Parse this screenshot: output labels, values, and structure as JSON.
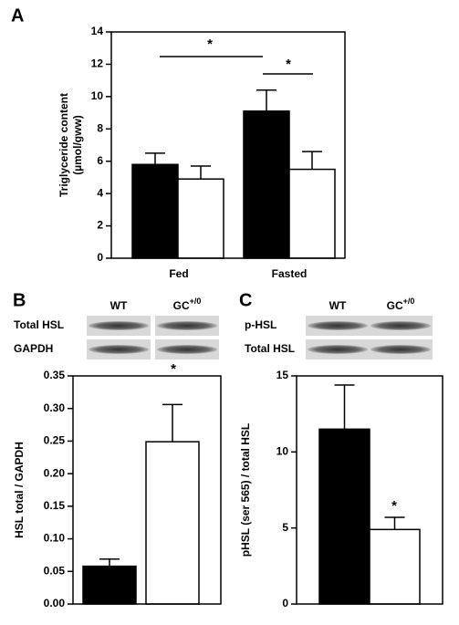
{
  "chart_data": [
    {
      "type": "bar",
      "panel": "A",
      "ylabel": [
        "Triglyceride content",
        "(µmol/gww)"
      ],
      "categories": [
        "Fed",
        "Fasted"
      ],
      "series": [
        {
          "color": "#000000",
          "values": [
            5.8,
            9.1
          ],
          "errors": [
            0.7,
            1.3
          ]
        },
        {
          "color": "#ffffff",
          "values": [
            4.9,
            5.5
          ],
          "errors": [
            0.8,
            1.1
          ]
        }
      ],
      "ylim": [
        0,
        14
      ],
      "yticks": [
        0,
        2,
        4,
        6,
        8,
        10,
        12,
        14
      ],
      "annotations": [
        "*",
        "*"
      ]
    },
    {
      "type": "bar",
      "panel": "B",
      "ylabel": [
        "HSL total / GAPDH"
      ],
      "blot": {
        "columns": [
          {
            "text": "WT"
          },
          {
            "text": "GC",
            "sup": "+/0"
          }
        ],
        "rows": [
          "Total HSL",
          "GAPDH"
        ]
      },
      "categories": [
        null
      ],
      "series": [
        {
          "color": "#000000",
          "values": [
            0.058
          ],
          "errors": [
            0.011
          ]
        },
        {
          "color": "#ffffff",
          "values": [
            0.249
          ],
          "errors": [
            0.057
          ]
        }
      ],
      "ylim": [
        0,
        0.35
      ],
      "yticks": [
        {
          "value": 0,
          "label": "0.00"
        },
        {
          "value": 0.05,
          "label": "0.05"
        },
        {
          "value": 0.1,
          "label": "0.10"
        },
        {
          "value": 0.15,
          "label": "0.15"
        },
        {
          "value": 0.2,
          "label": "0.20"
        },
        {
          "value": 0.25,
          "label": "0.25"
        },
        {
          "value": 0.3,
          "label": "0.30"
        },
        {
          "value": 0.35,
          "label": "0.35"
        }
      ],
      "annotations": [
        "*"
      ]
    },
    {
      "type": "bar",
      "panel": "C",
      "ylabel": [
        "pHSL (ser 565) / total HSL"
      ],
      "blot": {
        "columns": [
          {
            "text": "WT"
          },
          {
            "text": "GC",
            "sup": "+/0"
          }
        ],
        "rows": [
          "p-HSL",
          "Total HSL"
        ]
      },
      "categories": [
        null
      ],
      "series": [
        {
          "color": "#000000",
          "values": [
            11.5
          ],
          "errors": [
            2.9
          ]
        },
        {
          "color": "#ffffff",
          "values": [
            4.9
          ],
          "errors": [
            0.8
          ]
        }
      ],
      "ylim": [
        0,
        15
      ],
      "yticks": [
        0,
        5,
        10,
        15
      ],
      "annotations": [
        "*"
      ]
    }
  ]
}
